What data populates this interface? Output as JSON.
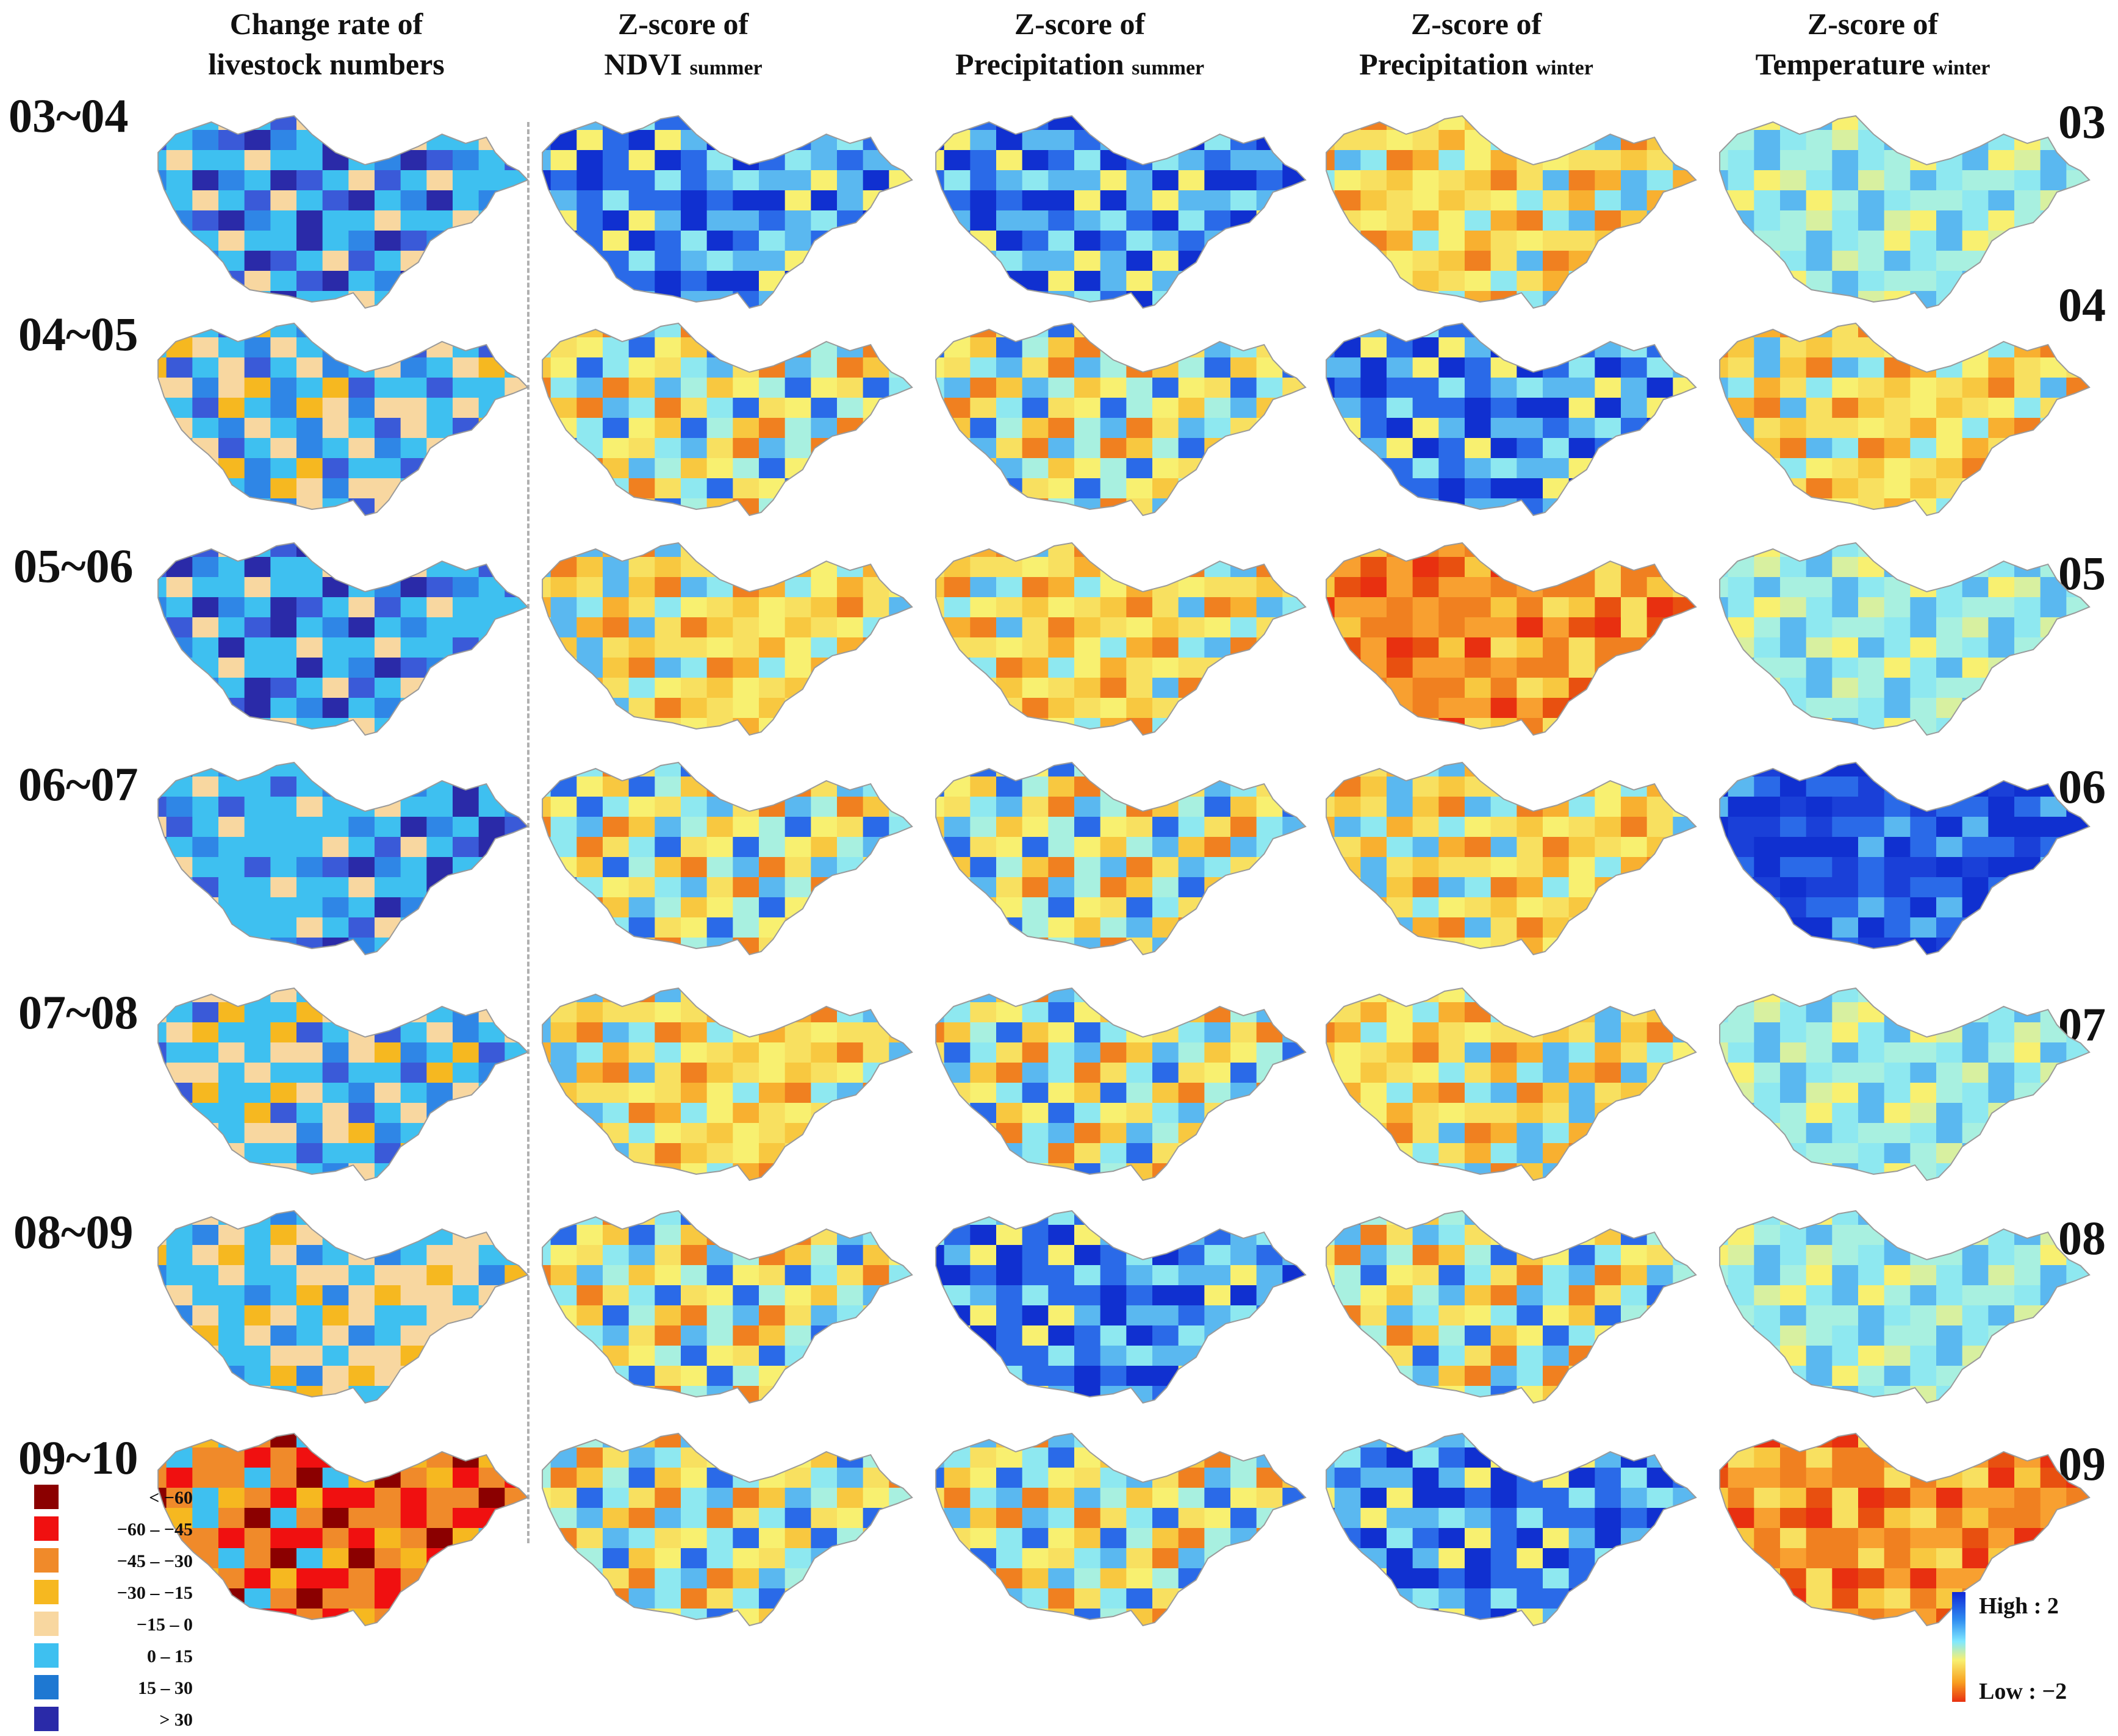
{
  "columns": [
    {
      "line1": "Change rate of",
      "line2": "livestock numbers",
      "sub": ""
    },
    {
      "line1": "Z-score of",
      "line2": "NDVI",
      "sub": "summer"
    },
    {
      "line1": "Z-score of",
      "line2": "Precipitation",
      "sub": "summer"
    },
    {
      "line1": "Z-score of",
      "line2": "Precipitation",
      "sub": "winter"
    },
    {
      "line1": "Z-score of",
      "line2": "Temperature",
      "sub": "winter"
    }
  ],
  "rows": [
    {
      "period": "03~04",
      "year": "03",
      "palettes": [
        "lv_blue",
        "z_blue",
        "z_blue",
        "z_warm",
        "z_cool"
      ]
    },
    {
      "period": "04~05",
      "year": "04",
      "palettes": [
        "lv_mix",
        "z_mixed",
        "z_mixed",
        "z_blue",
        "z_warm"
      ]
    },
    {
      "period": "05~06",
      "year": "05",
      "palettes": [
        "lv_blue",
        "z_warm",
        "z_warm",
        "z_hot",
        "z_cool"
      ]
    },
    {
      "period": "06~07",
      "year": "06",
      "palettes": [
        "lv_blue",
        "z_mixed",
        "z_mixed",
        "z_warm",
        "z_deepblue"
      ]
    },
    {
      "period": "07~08",
      "year": "07",
      "palettes": [
        "lv_mix",
        "z_warm",
        "z_mixed",
        "z_warm",
        "z_cool"
      ]
    },
    {
      "period": "08~09",
      "year": "08",
      "palettes": [
        "lv_tan",
        "z_mixed",
        "z_blue",
        "z_mixed",
        "z_cool"
      ]
    },
    {
      "period": "09~10",
      "year": "09",
      "palettes": [
        "lv_red",
        "z_mixed",
        "z_mixed",
        "z_blue",
        "z_hot"
      ]
    }
  ],
  "legend": {
    "items": [
      {
        "label": "< −60",
        "color": "#8b0000"
      },
      {
        "label": "−60 – −45",
        "color": "#f01010"
      },
      {
        "label": "−45 – −30",
        "color": "#f08a2a"
      },
      {
        "label": "−30 – −15",
        "color": "#f6b820"
      },
      {
        "label": "−15 – 0",
        "color": "#f8d7a0"
      },
      {
        "label": "0 – 15",
        "color": "#3ec0f0"
      },
      {
        "label": "15 – 30",
        "color": "#1e78d2"
      },
      {
        "label": "> 30",
        "color": "#2a2aa8"
      }
    ]
  },
  "colorbar": {
    "high": "High : 2",
    "low": "Low : −2"
  }
}
